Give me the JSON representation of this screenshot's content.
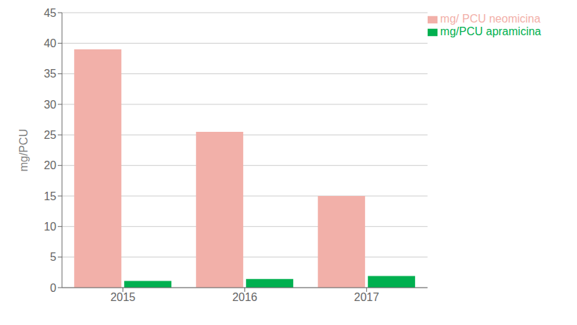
{
  "chart_data": {
    "type": "bar",
    "categories": [
      "2015",
      "2016",
      "2017"
    ],
    "series": [
      {
        "name": "mg/ PCU neomicina",
        "color": "#f2b0a9",
        "values": [
          39.0,
          25.5,
          15.0
        ]
      },
      {
        "name": "mg/PCU apramicina",
        "color": "#00b050",
        "values": [
          1.1,
          1.4,
          1.9
        ]
      }
    ],
    "y_label": "mg/PCU",
    "ylim": [
      0,
      45
    ],
    "yticks": [
      0,
      5,
      10,
      15,
      20,
      25,
      30,
      35,
      40,
      45
    ],
    "grid": true,
    "legend": "upper right"
  }
}
